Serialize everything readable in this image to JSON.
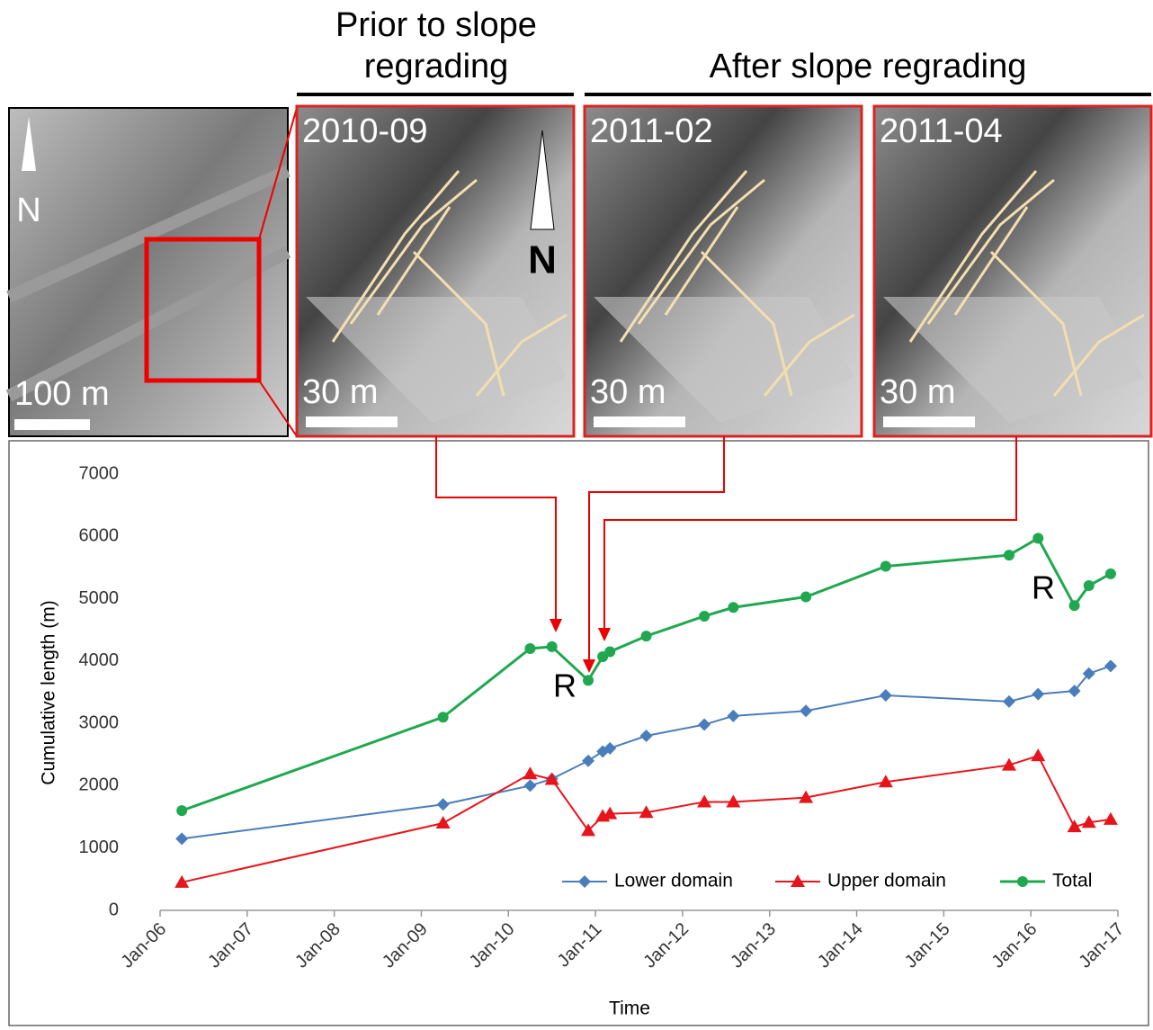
{
  "panels": {
    "titles": [
      "Prior to slope",
      "regrading",
      "After slope regrading"
    ],
    "overview": {
      "north": "N",
      "scale": "100 m"
    },
    "north": "N",
    "frames": [
      {
        "date": "2010-09",
        "scale": "30 m"
      },
      {
        "date": "2011-02",
        "scale": "30 m"
      },
      {
        "date": "2011-04",
        "scale": "30 m"
      }
    ]
  },
  "chart_data": {
    "type": "line",
    "x_label": "Time",
    "y_label": "Cumulative length (m)",
    "annotations": [
      "R",
      "R"
    ],
    "x": [
      "2006-04",
      "2009-04",
      "2010-04",
      "2010-07",
      "2010-12",
      "2011-02",
      "2011-03",
      "2011-08",
      "2012-04",
      "2012-08",
      "2013-06",
      "2014-05",
      "2015-10",
      "2016-02",
      "2016-07",
      "2016-09",
      "2016-12"
    ],
    "series": [
      {
        "name": "Lower domain",
        "color": "#4a7ebb",
        "marker": "diamond",
        "values": [
          1150,
          1700,
          2000,
          2110,
          2400,
          2550,
          2600,
          2800,
          2980,
          3120,
          3200,
          3450,
          3350,
          3470,
          3520,
          3800,
          3920
        ]
      },
      {
        "name": "Upper domain",
        "color": "#e8141b",
        "marker": "triangle",
        "values": [
          450,
          1400,
          2190,
          2100,
          1280,
          1510,
          1550,
          1570,
          1740,
          1740,
          1810,
          2060,
          2330,
          2480,
          1340,
          1410,
          1460
        ]
      },
      {
        "name": "Total",
        "color": "#1fa84f",
        "marker": "circle",
        "values": [
          1600,
          3100,
          4200,
          4230,
          3690,
          4070,
          4150,
          4400,
          4720,
          4860,
          5030,
          5520,
          5700,
          5970,
          4890,
          5210,
          5400
        ]
      }
    ],
    "xlim": [
      "2006-01",
      "2017-01"
    ],
    "xticks": [
      {
        "value": "2006-01",
        "label": "Jan-06"
      },
      {
        "value": "2007-01",
        "label": "Jan-07"
      },
      {
        "value": "2008-01",
        "label": "Jan-08"
      },
      {
        "value": "2009-01",
        "label": "Jan-09"
      },
      {
        "value": "2010-01",
        "label": "Jan-10"
      },
      {
        "value": "2011-01",
        "label": "Jan-11"
      },
      {
        "value": "2012-01",
        "label": "Jan-12"
      },
      {
        "value": "2013-01",
        "label": "Jan-13"
      },
      {
        "value": "2014-01",
        "label": "Jan-14"
      },
      {
        "value": "2015-01",
        "label": "Jan-15"
      },
      {
        "value": "2016-01",
        "label": "Jan-16"
      },
      {
        "value": "2017-01",
        "label": "Jan-17"
      }
    ],
    "ylim": [
      0,
      7000
    ],
    "yticks": [
      0,
      1000,
      2000,
      3000,
      4000,
      5000,
      6000,
      7000
    ],
    "grid": false,
    "legend": "bottom-right"
  }
}
